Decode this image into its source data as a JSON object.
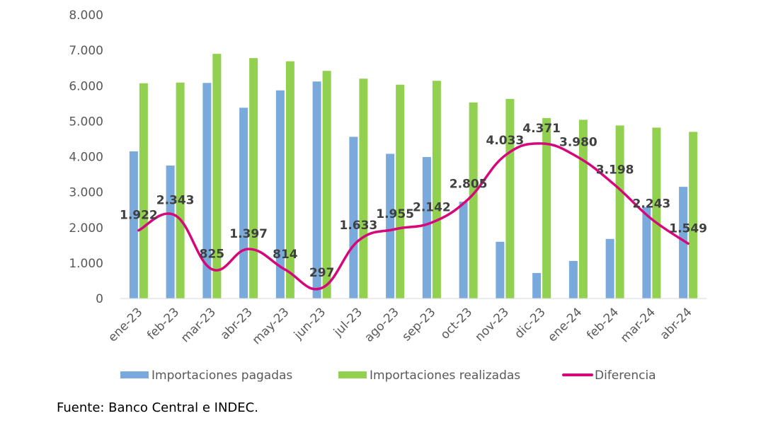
{
  "chart_data": {
    "type": "bar",
    "categories": [
      "ene-23",
      "feb-23",
      "mar-23",
      "abr-23",
      "may-23",
      "jun-23",
      "jul-23",
      "ago-23",
      "sep-23",
      "oct-23",
      "nov-23",
      "dic-23",
      "ene-24",
      "feb-24",
      "mar-24",
      "abr-24"
    ],
    "series": [
      {
        "name": "Importaciones pagadas",
        "type": "bar",
        "color": "#7aaadc",
        "values": [
          4150,
          3750,
          6080,
          5380,
          5870,
          6120,
          4560,
          4080,
          3990,
          2730,
          1600,
          720,
          1060,
          1680,
          2580,
          3150
        ]
      },
      {
        "name": "Importaciones realizadas",
        "type": "bar",
        "color": "#92d050",
        "values": [
          6070,
          6090,
          6900,
          6780,
          6690,
          6420,
          6200,
          6030,
          6140,
          5530,
          5630,
          5090,
          5040,
          4880,
          4820,
          4700
        ]
      },
      {
        "name": "Diferencia",
        "type": "line",
        "color": "#d5077a",
        "values": [
          1922,
          2343,
          825,
          1397,
          814,
          297,
          1633,
          1955,
          2142,
          2805,
          4033,
          4371,
          3980,
          3198,
          2243,
          1549
        ],
        "labels": [
          "1.922",
          "2.343",
          "825",
          "1.397",
          "814",
          "297",
          "1.633",
          "1.955",
          "2.142",
          "2.805",
          "4.033",
          "4.371",
          "3.980",
          "3.198",
          "2.243",
          "1.549"
        ]
      }
    ],
    "ylim": [
      0,
      8000
    ],
    "yticks": [
      0,
      1000,
      2000,
      3000,
      4000,
      5000,
      6000,
      7000,
      8000
    ],
    "ytick_labels": [
      "0",
      "1.000",
      "2.000",
      "3.000",
      "4.000",
      "5.000",
      "6.000",
      "7.000",
      "8.000"
    ],
    "legend": {
      "position": "bottom",
      "entries": [
        "Importaciones pagadas",
        "Importaciones realizadas",
        "Diferencia"
      ]
    },
    "grid": false
  },
  "source_note": "Fuente: Banco Central e INDEC."
}
